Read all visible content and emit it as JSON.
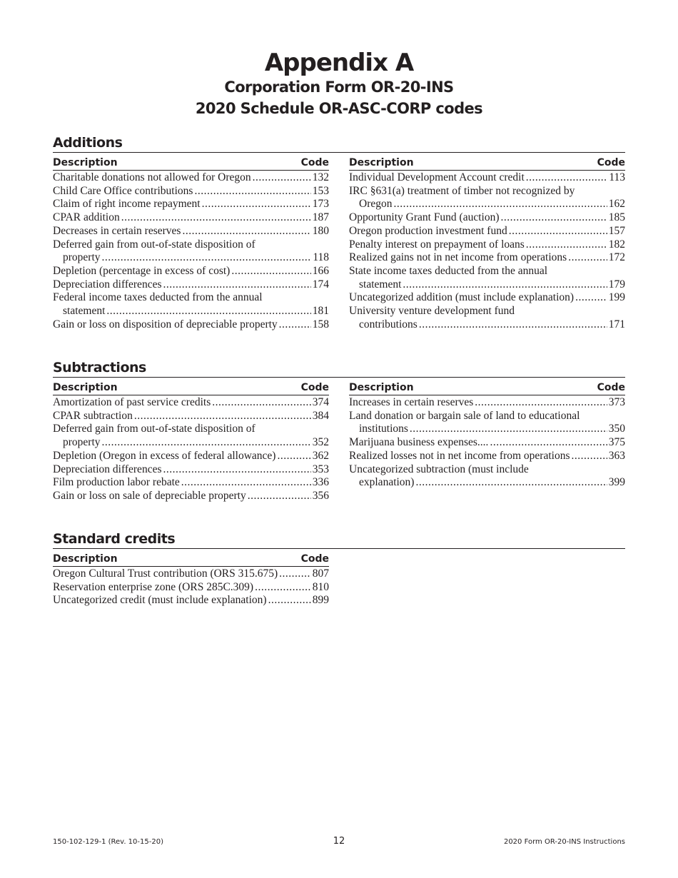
{
  "header": {
    "title": "Appendix A",
    "subtitle_1": "Corporation Form OR-20-INS",
    "subtitle_2": "2020 Schedule OR-ASC-CORP codes"
  },
  "sections": [
    {
      "title": "Additions",
      "columns": [
        {
          "description_header": "Description",
          "code_header": "Code",
          "entries": [
            {
              "lines": [
                "Charitable donations not allowed for Oregon"
              ],
              "code": 132
            },
            {
              "lines": [
                "Child Care Office contributions"
              ],
              "code": 153
            },
            {
              "lines": [
                "Claim of right income repayment"
              ],
              "code": 173
            },
            {
              "lines": [
                "CPAR addition"
              ],
              "code": 187
            },
            {
              "lines": [
                "Decreases in certain reserves"
              ],
              "code": 180
            },
            {
              "lines": [
                "Deferred gain from out-of-state disposition of",
                "property"
              ],
              "code": 118
            },
            {
              "lines": [
                "Depletion (percentage in excess of cost)"
              ],
              "code": 166
            },
            {
              "lines": [
                "Depreciation differences"
              ],
              "code": 174
            },
            {
              "lines": [
                "Federal income taxes deducted from the annual",
                "statement"
              ],
              "code": 181
            },
            {
              "lines": [
                "Gain or loss on disposition of depreciable property"
              ],
              "code": 158
            }
          ]
        },
        {
          "description_header": "Description",
          "code_header": "Code",
          "entries": [
            {
              "lines": [
                "Individual Development Account credit"
              ],
              "code": 113
            },
            {
              "lines": [
                "IRC §631(a) treatment of timber not recognized by",
                "Oregon"
              ],
              "code": 162
            },
            {
              "lines": [
                "Opportunity Grant Fund (auction)"
              ],
              "code": 185
            },
            {
              "lines": [
                "Oregon production investment fund"
              ],
              "code": 157
            },
            {
              "lines": [
                "Penalty interest on prepayment of loans"
              ],
              "code": 182
            },
            {
              "lines": [
                "Realized gains not in net income from operations"
              ],
              "code": 172
            },
            {
              "lines": [
                "State income taxes deducted from the annual",
                "statement"
              ],
              "code": 179
            },
            {
              "lines": [
                "Uncategorized addition (must include explanation)"
              ],
              "code": 199
            },
            {
              "lines": [
                "University venture development fund",
                "contributions"
              ],
              "code": 171
            }
          ]
        }
      ]
    },
    {
      "title": "Subtractions",
      "columns": [
        {
          "description_header": "Description",
          "code_header": "Code",
          "entries": [
            {
              "lines": [
                "Amortization of past service credits"
              ],
              "code": 374
            },
            {
              "lines": [
                "CPAR subtraction"
              ],
              "code": 384
            },
            {
              "lines": [
                "Deferred gain from out-of-state disposition of",
                "property"
              ],
              "code": 352
            },
            {
              "lines": [
                "Depletion (Oregon in excess of federal allowance)"
              ],
              "code": 362
            },
            {
              "lines": [
                "Depreciation differences"
              ],
              "code": 353
            },
            {
              "lines": [
                "Film production labor rebate"
              ],
              "code": 336
            },
            {
              "lines": [
                "Gain or loss on sale of depreciable property"
              ],
              "code": 356
            }
          ]
        },
        {
          "description_header": "Description",
          "code_header": "Code",
          "entries": [
            {
              "lines": [
                "Increases in certain reserves"
              ],
              "code": 373
            },
            {
              "lines": [
                "Land donation or bargain sale of land to educational",
                "institutions"
              ],
              "code": 350
            },
            {
              "lines": [
                "Marijuana business expenses...."
              ],
              "code": 375
            },
            {
              "lines": [
                "Realized losses not in net income from operations"
              ],
              "code": 363
            },
            {
              "lines": [
                "Uncategorized subtraction (must include",
                "explanation)"
              ],
              "code": 399
            }
          ]
        }
      ]
    },
    {
      "title": "Standard credits",
      "columns": [
        {
          "description_header": "Description",
          "code_header": "Code",
          "entries": [
            {
              "lines": [
                "Oregon Cultural Trust contribution (ORS 315.675)"
              ],
              "code": 807
            },
            {
              "lines": [
                "Reservation enterprise zone (ORS 285C.309)"
              ],
              "code": 810
            },
            {
              "lines": [
                "Uncategorized credit (must include explanation)"
              ],
              "code": 899
            }
          ]
        }
      ]
    }
  ],
  "footer": {
    "left": "150-102-129-1 (Rev. 10-15-20)",
    "page": 12,
    "right": "2020 Form OR-20-INS Instructions"
  }
}
